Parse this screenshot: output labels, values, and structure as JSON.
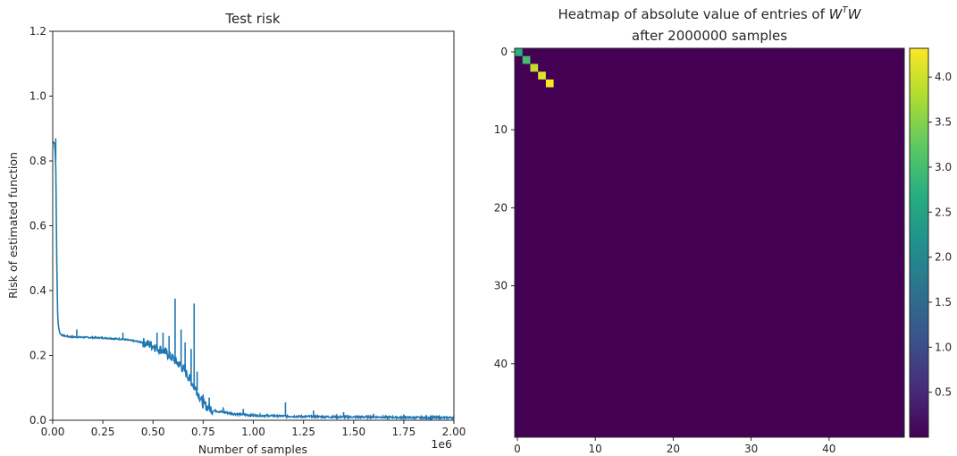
{
  "chart_data": [
    {
      "type": "line",
      "title": "Test risk",
      "xlabel": "Number of samples",
      "ylabel": "Risk of estimated function",
      "x_offset_text": "1e6",
      "xlim": [
        0,
        2.0
      ],
      "ylim": [
        0,
        1.2
      ],
      "x_ticks": [
        "0.00",
        "0.25",
        "0.50",
        "0.75",
        "1.00",
        "1.25",
        "1.50",
        "1.75",
        "2.00"
      ],
      "y_ticks": [
        "0.0",
        "0.2",
        "0.4",
        "0.6",
        "0.8",
        "1.0",
        "1.2"
      ],
      "series": [
        {
          "color": "#1f77b4",
          "x": [
            0.0,
            0.005,
            0.01,
            0.015,
            0.02,
            0.025,
            0.03,
            0.035,
            0.04,
            0.05,
            0.06,
            0.08,
            0.1,
            0.15,
            0.2,
            0.25,
            0.3,
            0.35,
            0.4,
            0.45,
            0.5,
            0.55,
            0.6,
            0.65,
            0.7,
            0.72,
            0.75,
            0.8,
            0.9,
            1.0,
            1.2,
            1.4,
            1.6,
            1.8,
            2.0
          ],
          "y": [
            0.855,
            0.86,
            0.85,
            0.8,
            0.5,
            0.31,
            0.285,
            0.27,
            0.265,
            0.262,
            0.26,
            0.258,
            0.257,
            0.256,
            0.255,
            0.254,
            0.252,
            0.25,
            0.245,
            0.24,
            0.23,
            0.215,
            0.19,
            0.16,
            0.11,
            0.09,
            0.05,
            0.03,
            0.02,
            0.015,
            0.012,
            0.01,
            0.01,
            0.008,
            0.008
          ],
          "spikes": [
            {
              "x": 0.015,
              "y": 0.87
            },
            {
              "x": 0.12,
              "y": 0.28
            },
            {
              "x": 0.35,
              "y": 0.27
            },
            {
              "x": 0.52,
              "y": 0.27
            },
            {
              "x": 0.55,
              "y": 0.27
            },
            {
              "x": 0.58,
              "y": 0.26
            },
            {
              "x": 0.61,
              "y": 0.375
            },
            {
              "x": 0.64,
              "y": 0.28
            },
            {
              "x": 0.66,
              "y": 0.24
            },
            {
              "x": 0.69,
              "y": 0.22
            },
            {
              "x": 0.705,
              "y": 0.36
            },
            {
              "x": 0.72,
              "y": 0.15
            },
            {
              "x": 0.75,
              "y": 0.08
            },
            {
              "x": 0.78,
              "y": 0.07
            },
            {
              "x": 0.85,
              "y": 0.04
            },
            {
              "x": 0.95,
              "y": 0.035
            },
            {
              "x": 1.16,
              "y": 0.055
            },
            {
              "x": 1.3,
              "y": 0.03
            },
            {
              "x": 1.45,
              "y": 0.025
            },
            {
              "x": 1.6,
              "y": 0.02
            },
            {
              "x": 1.75,
              "y": 0.018
            },
            {
              "x": 1.9,
              "y": 0.015
            }
          ]
        }
      ],
      "grid": false
    },
    {
      "type": "heatmap",
      "title_line1": "Heatmap of absolute value of entries of ",
      "title_math_W1": "W",
      "title_math_T": "T",
      "title_math_W2": "W",
      "title_line2": "after 2000000 samples",
      "rows": 50,
      "cols": 50,
      "colormap": "viridis",
      "background_value": 0.0,
      "diagonal_values": [
        {
          "index": 0,
          "value": 2.7
        },
        {
          "index": 1,
          "value": 3.0
        },
        {
          "index": 2,
          "value": 3.9
        },
        {
          "index": 3,
          "value": 4.1
        },
        {
          "index": 4,
          "value": 4.3
        }
      ],
      "x_ticks": [
        "0",
        "10",
        "20",
        "30",
        "40"
      ],
      "y_ticks": [
        "0",
        "10",
        "20",
        "30",
        "40"
      ],
      "colorbar_range": [
        0.0,
        4.32
      ],
      "colorbar_ticks": [
        "0.5",
        "1.0",
        "1.5",
        "2.0",
        "2.5",
        "3.0",
        "3.5",
        "4.0"
      ]
    }
  ]
}
